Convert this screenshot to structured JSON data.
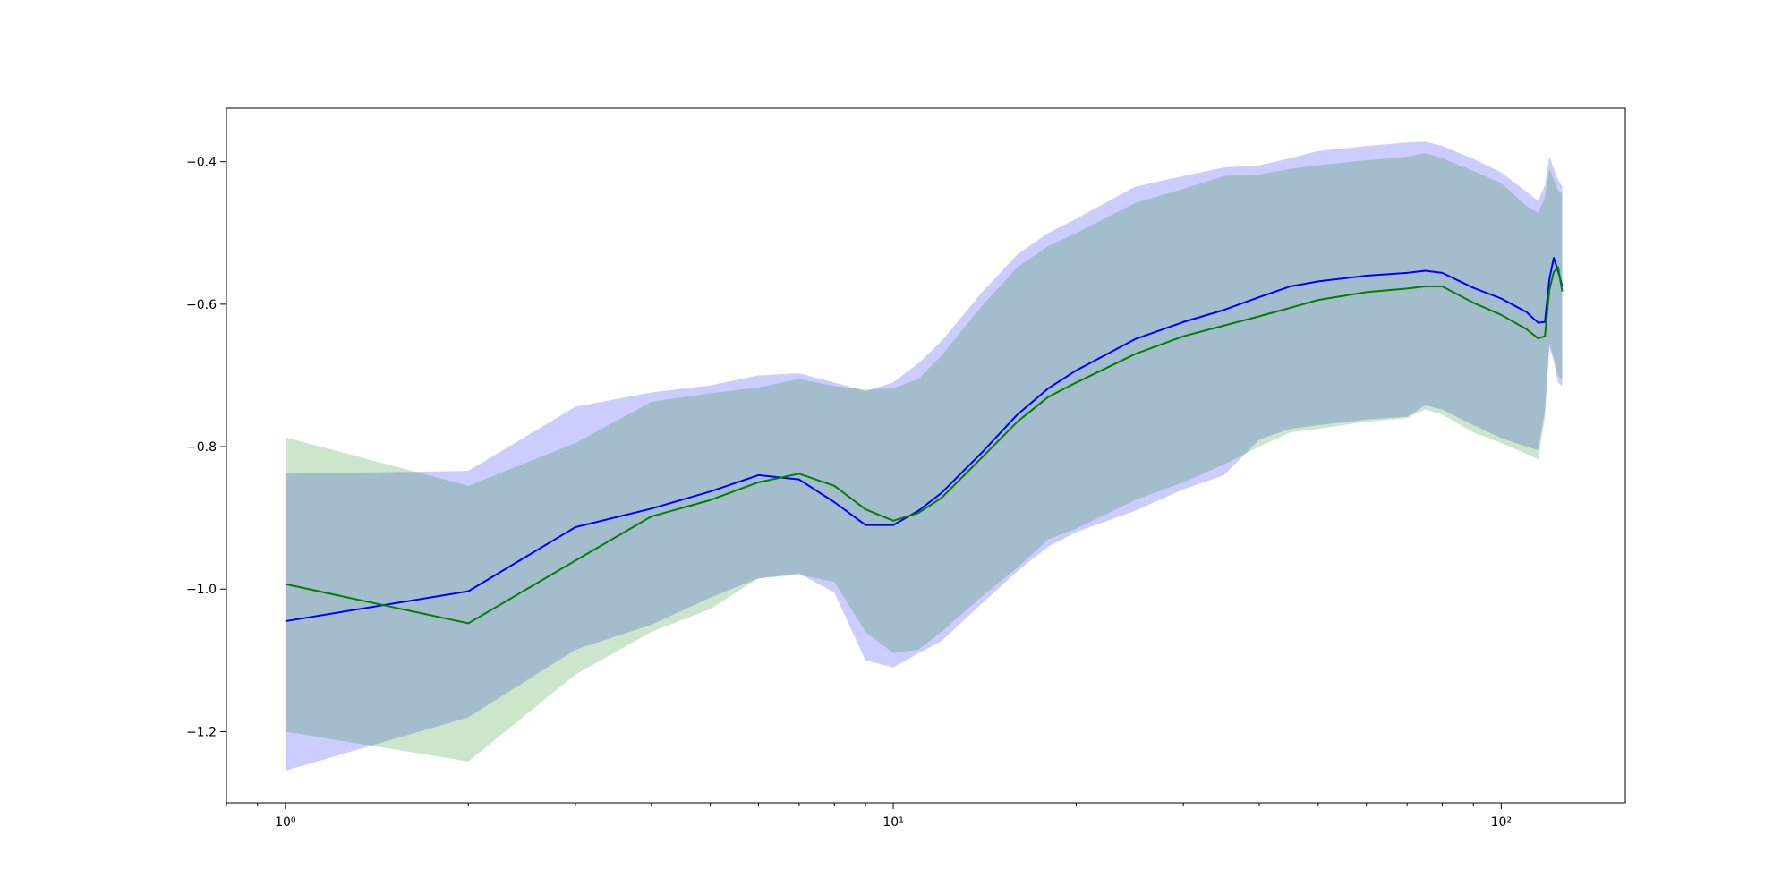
{
  "chart_data": {
    "type": "line",
    "title": "",
    "xlabel": "",
    "ylabel": "",
    "xscale": "log",
    "xlim": [
      0.8,
      160
    ],
    "ylim": [
      -1.3,
      -0.325
    ],
    "grid": false,
    "legend": "none",
    "x_ticks": [
      {
        "value": 1,
        "label": "10⁰"
      },
      {
        "value": 10,
        "label": "10¹"
      },
      {
        "value": 100,
        "label": "10²"
      }
    ],
    "y_ticks": [
      {
        "value": -1.2,
        "label": "−1.2"
      },
      {
        "value": -1.0,
        "label": "−1.0"
      },
      {
        "value": -0.8,
        "label": "−0.8"
      },
      {
        "value": -0.6,
        "label": "−0.6"
      },
      {
        "value": -0.4,
        "label": "−0.4"
      }
    ],
    "series": [
      {
        "color": "#0000ff",
        "band_color": "#0000ff",
        "band_opacity": 0.2,
        "x": [
          1,
          2,
          3,
          4,
          5,
          6,
          7,
          8,
          9,
          10,
          11,
          12,
          14,
          16,
          18,
          20,
          25,
          30,
          35,
          40,
          45,
          50,
          60,
          70,
          75,
          80,
          90,
          100,
          110,
          115,
          118,
          120,
          122,
          124,
          126
        ],
        "y": [
          -1.045,
          -1.003,
          -0.913,
          -0.887,
          -0.863,
          -0.84,
          -0.846,
          -0.878,
          -0.91,
          -0.91,
          -0.89,
          -0.865,
          -0.808,
          -0.755,
          -0.718,
          -0.693,
          -0.649,
          -0.625,
          -0.608,
          -0.59,
          -0.575,
          -0.568,
          -0.56,
          -0.556,
          -0.553,
          -0.556,
          -0.577,
          -0.592,
          -0.611,
          -0.626,
          -0.625,
          -0.565,
          -0.535,
          -0.553,
          -0.575
        ],
        "upper": [
          -0.838,
          -0.834,
          -0.744,
          -0.724,
          -0.714,
          -0.7,
          -0.697,
          -0.71,
          -0.722,
          -0.71,
          -0.683,
          -0.652,
          -0.583,
          -0.53,
          -0.5,
          -0.48,
          -0.435,
          -0.42,
          -0.408,
          -0.405,
          -0.395,
          -0.385,
          -0.378,
          -0.373,
          -0.372,
          -0.378,
          -0.396,
          -0.415,
          -0.442,
          -0.455,
          -0.433,
          -0.392,
          -0.41,
          -0.425,
          -0.435
        ],
        "lower": [
          -1.255,
          -1.18,
          -1.085,
          -1.05,
          -1.012,
          -0.985,
          -0.978,
          -1.005,
          -1.1,
          -1.11,
          -1.09,
          -1.073,
          -1.02,
          -0.975,
          -0.94,
          -0.92,
          -0.89,
          -0.86,
          -0.84,
          -0.79,
          -0.775,
          -0.77,
          -0.762,
          -0.758,
          -0.742,
          -0.748,
          -0.77,
          -0.788,
          -0.8,
          -0.805,
          -0.75,
          -0.66,
          -0.68,
          -0.71,
          -0.715
        ]
      },
      {
        "color": "#008000",
        "band_color": "#008000",
        "band_opacity": 0.2,
        "x": [
          1,
          2,
          3,
          4,
          5,
          6,
          7,
          8,
          9,
          10,
          11,
          12,
          14,
          16,
          18,
          20,
          25,
          30,
          35,
          40,
          45,
          50,
          60,
          70,
          75,
          80,
          90,
          100,
          110,
          115,
          118,
          120,
          122,
          124,
          126
        ],
        "y": [
          -0.993,
          -1.048,
          -0.96,
          -0.898,
          -0.875,
          -0.85,
          -0.838,
          -0.855,
          -0.888,
          -0.904,
          -0.893,
          -0.872,
          -0.815,
          -0.765,
          -0.73,
          -0.71,
          -0.67,
          -0.645,
          -0.63,
          -0.617,
          -0.605,
          -0.594,
          -0.583,
          -0.578,
          -0.575,
          -0.575,
          -0.598,
          -0.615,
          -0.635,
          -0.648,
          -0.645,
          -0.58,
          -0.555,
          -0.548,
          -0.582
        ],
        "upper": [
          -0.787,
          -0.855,
          -0.795,
          -0.737,
          -0.725,
          -0.717,
          -0.705,
          -0.715,
          -0.72,
          -0.718,
          -0.705,
          -0.672,
          -0.602,
          -0.548,
          -0.518,
          -0.5,
          -0.458,
          -0.438,
          -0.42,
          -0.418,
          -0.41,
          -0.405,
          -0.398,
          -0.393,
          -0.388,
          -0.395,
          -0.413,
          -0.43,
          -0.462,
          -0.472,
          -0.45,
          -0.41,
          -0.425,
          -0.44,
          -0.445
        ],
        "lower": [
          -1.2,
          -1.242,
          -1.12,
          -1.06,
          -1.028,
          -0.985,
          -0.98,
          -0.99,
          -1.06,
          -1.09,
          -1.085,
          -1.06,
          -1.01,
          -0.97,
          -0.93,
          -0.915,
          -0.875,
          -0.85,
          -0.825,
          -0.8,
          -0.78,
          -0.775,
          -0.765,
          -0.76,
          -0.748,
          -0.755,
          -0.78,
          -0.795,
          -0.81,
          -0.818,
          -0.76,
          -0.655,
          -0.675,
          -0.7,
          -0.705
        ]
      }
    ]
  }
}
